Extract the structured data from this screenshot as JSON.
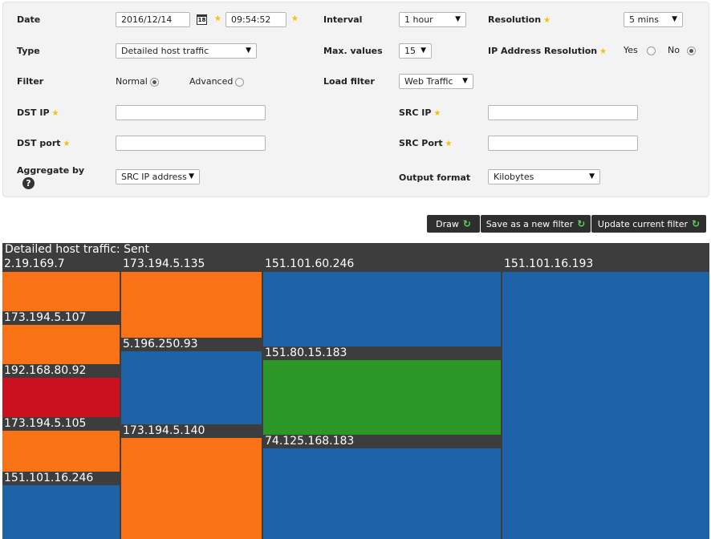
{
  "form": {
    "date": {
      "label": "Date",
      "value": "2016/12/14",
      "calendar_day": "18",
      "time": "09:54:52"
    },
    "interval": {
      "label": "Interval",
      "value": "1 hour"
    },
    "resolution": {
      "label": "Resolution",
      "value": "5 mins"
    },
    "type": {
      "label": "Type",
      "value": "Detailed host traffic"
    },
    "max_values": {
      "label": "Max. values",
      "value": "15"
    },
    "ip_resolution": {
      "label": "IP Address Resolution",
      "yes": "Yes",
      "no": "No",
      "selected": "No"
    },
    "filter": {
      "label": "Filter",
      "normal": "Normal",
      "advanced": "Advanced",
      "selected": "Normal"
    },
    "load_filter": {
      "label": "Load filter",
      "value": "Web Traffic"
    },
    "dst_ip": {
      "label": "DST IP",
      "value": ""
    },
    "src_ip": {
      "label": "SRC IP",
      "value": ""
    },
    "dst_port": {
      "label": "DST port",
      "value": ""
    },
    "src_port": {
      "label": "SRC Port",
      "value": ""
    },
    "aggregate": {
      "label": "Aggregate by",
      "value": "SRC IP address",
      "help": "?"
    },
    "output": {
      "label": "Output format",
      "value": "Kilobytes"
    }
  },
  "buttons": {
    "draw": "Draw",
    "save_new": "Save as a new filter",
    "update": "Update current filter"
  },
  "colors": {
    "orange": "#f97316",
    "blue": "#1e63a8",
    "red": "#cb1120",
    "green": "#2a9726",
    "label_bg": "#3d3d3d"
  },
  "treemap": {
    "title": "Detailed host traffic: Sent",
    "columns": [
      {
        "host": "2.19.169.7",
        "color": "orange"
      },
      {
        "host": "173.194.5.135",
        "color": "orange"
      },
      {
        "host": "151.101.60.246",
        "color": "blue"
      },
      {
        "host": "151.101.16.193",
        "color": "blue"
      }
    ],
    "nodes": [
      {
        "host": "173.194.5.107",
        "color": "orange"
      },
      {
        "host": "192.168.80.92",
        "color": "red"
      },
      {
        "host": "173.194.5.105",
        "color": "orange"
      },
      {
        "host": "151.101.16.246",
        "color": "blue"
      },
      {
        "host": "5.196.250.93",
        "color": "blue"
      },
      {
        "host": "173.194.5.140",
        "color": "orange"
      },
      {
        "host": "151.80.15.183",
        "color": "green"
      },
      {
        "host": "74.125.168.183",
        "color": "blue"
      }
    ]
  }
}
